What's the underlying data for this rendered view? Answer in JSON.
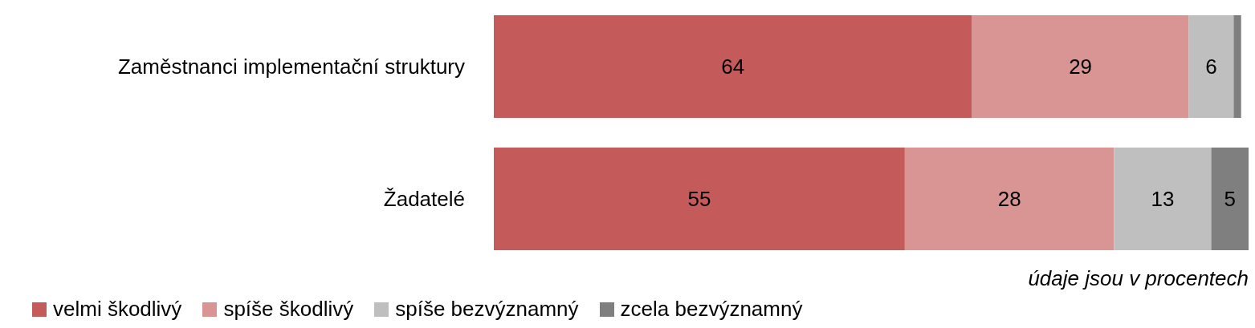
{
  "chart_data": {
    "type": "bar",
    "orientation": "horizontal",
    "stacked": true,
    "categories": [
      "Zaměstnanci implementační struktury",
      "Žadatelé"
    ],
    "series": [
      {
        "name": "velmi škodlivý",
        "color": "#c55a5a",
        "values": [
          64,
          55
        ],
        "value_labels": [
          "64",
          "55"
        ]
      },
      {
        "name": "spíše škodlivý",
        "color": "#d99594",
        "values": [
          29,
          28
        ],
        "value_labels": [
          "29",
          "28"
        ]
      },
      {
        "name": "spíše bezvýznamný",
        "color": "#bfbfbf",
        "values": [
          6,
          13
        ],
        "value_labels": [
          "6",
          "13"
        ]
      },
      {
        "name": "zcela bezvýznamný",
        "color": "#7f7f7f",
        "values": [
          1,
          5
        ],
        "value_labels": [
          null,
          "5"
        ]
      }
    ],
    "legend": "bottom left",
    "annotations": [
      "údaje jsou v procentech"
    ]
  }
}
